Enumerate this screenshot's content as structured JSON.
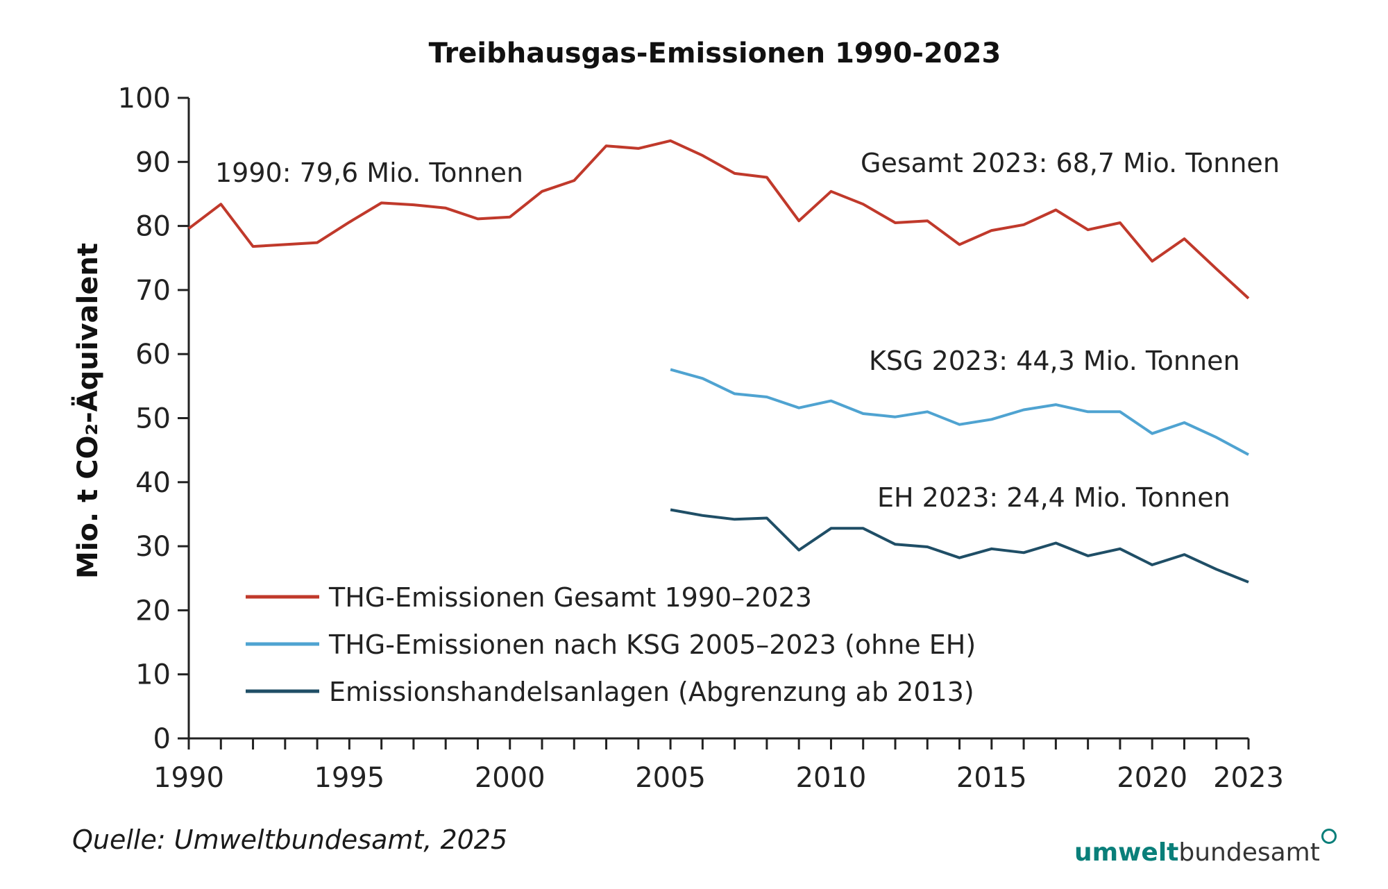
{
  "chart_data": {
    "type": "line",
    "title": "Treibhausgas-Emissionen 1990-2023",
    "ylabel": "Mio. t CO₂-Äquivalent",
    "xlabel": "",
    "xlim": [
      1990,
      2023
    ],
    "ylim": [
      0,
      100
    ],
    "x_ticks": [
      "1990",
      "1995",
      "2000",
      "2005",
      "2010",
      "2015",
      "2020",
      "2023"
    ],
    "y_ticks": [
      "0",
      "10",
      "20",
      "30",
      "40",
      "50",
      "60",
      "70",
      "80",
      "90",
      "100"
    ],
    "grid": false,
    "legend_position": "bottom-left",
    "series": [
      {
        "name": "THG-Emissionen Gesamt 1990–2023",
        "color": "#c0392b",
        "x": [
          1990,
          1991,
          1992,
          1993,
          1994,
          1995,
          1996,
          1997,
          1998,
          1999,
          2000,
          2001,
          2002,
          2003,
          2004,
          2005,
          2006,
          2007,
          2008,
          2009,
          2010,
          2011,
          2012,
          2013,
          2014,
          2015,
          2016,
          2017,
          2018,
          2019,
          2020,
          2021,
          2022,
          2023
        ],
        "values": [
          79.6,
          83.4,
          76.8,
          77.1,
          77.4,
          80.6,
          83.6,
          83.3,
          82.8,
          81.1,
          81.4,
          85.4,
          87.1,
          92.5,
          92.1,
          93.3,
          91.0,
          88.2,
          87.6,
          80.8,
          85.4,
          83.4,
          80.5,
          80.8,
          77.1,
          79.3,
          80.2,
          82.5,
          79.4,
          80.5,
          74.5,
          78.0,
          73.3,
          68.7
        ]
      },
      {
        "name": "THG-Emissionen nach KSG 2005–2023 (ohne EH)",
        "color": "#4fa3d1",
        "x": [
          2005,
          2006,
          2007,
          2008,
          2009,
          2010,
          2011,
          2012,
          2013,
          2014,
          2015,
          2016,
          2017,
          2018,
          2019,
          2020,
          2021,
          2022,
          2023
        ],
        "values": [
          57.6,
          56.2,
          53.8,
          53.3,
          51.6,
          52.7,
          50.7,
          50.2,
          51.0,
          49.0,
          49.8,
          51.3,
          52.1,
          51.0,
          51.0,
          47.6,
          49.3,
          47.0,
          44.3
        ]
      },
      {
        "name": "Emissionshandelsanlagen (Abgrenzung ab 2013)",
        "color": "#1f4e66",
        "x": [
          2005,
          2006,
          2007,
          2008,
          2009,
          2010,
          2011,
          2012,
          2013,
          2014,
          2015,
          2016,
          2017,
          2018,
          2019,
          2020,
          2021,
          2022,
          2023
        ],
        "values": [
          35.7,
          34.8,
          34.2,
          34.4,
          29.4,
          32.8,
          32.8,
          30.3,
          29.9,
          28.2,
          29.6,
          29.0,
          30.5,
          28.5,
          29.6,
          27.1,
          28.7,
          26.4,
          24.4
        ]
      }
    ],
    "annotations": [
      "1990: 79,6 Mio. Tonnen",
      "Gesamt 2023: 68,7 Mio. Tonnen",
      "KSG 2023: 44,3 Mio. Tonnen",
      "EH 2023:  24,4 Mio. Tonnen"
    ]
  },
  "footer": {
    "source": "Quelle: Umweltbundesamt, 2025",
    "logo_bold": "umwelt",
    "logo_regular": "bundesamt"
  }
}
